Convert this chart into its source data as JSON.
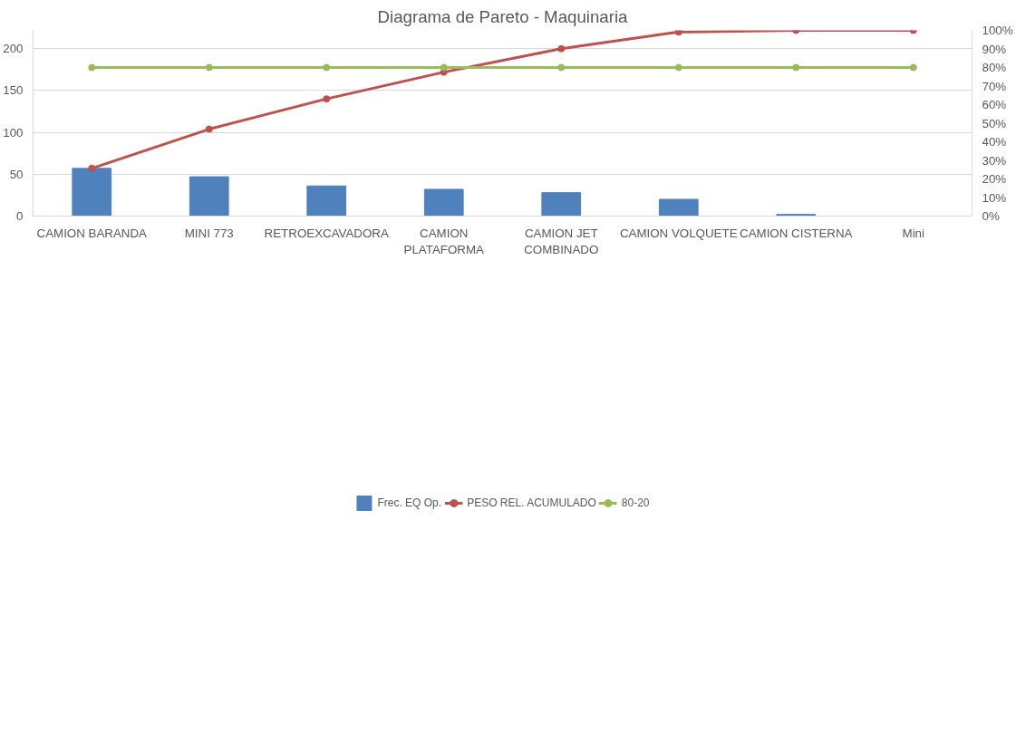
{
  "chart_data": {
    "type": "bar",
    "title": "Diagrama de Pareto - Maquinaria",
    "categories": [
      "CAMION BARANDA",
      "MINI 773",
      "RETROEXCAVADORA",
      "CAMION PLATAFORMA",
      "CAMION JET COMBINADO",
      "CAMION VOLQUETE",
      "CAMION CISTERNA",
      "Mini"
    ],
    "series": [
      {
        "name": "Frec. EQ Op.",
        "color": "#4f81bd",
        "values": [
          57,
          47,
          36,
          32,
          28,
          20,
          2,
          0
        ]
      },
      {
        "name": "PESO REL. ACUMULADO",
        "type": "line",
        "axis": "y2",
        "color": "#c0504d",
        "marker": "circle",
        "values": [
          25.7,
          46.8,
          63.1,
          77.5,
          90.1,
          99.1,
          100,
          100
        ]
      },
      {
        "name": "80-20",
        "type": "line",
        "axis": "y2",
        "color": "#9bbb59",
        "marker": "circle",
        "values": [
          80,
          80,
          80,
          80,
          80,
          80,
          80,
          80
        ]
      }
    ],
    "ylim": [
      0,
      222
    ],
    "yticks": [
      0,
      50,
      100,
      150,
      200
    ],
    "y2lim": [
      0,
      100
    ],
    "y2ticks": [
      {
        "value": 0,
        "label": "0%"
      },
      {
        "value": 10,
        "label": "10%"
      },
      {
        "value": 20,
        "label": "20%"
      },
      {
        "value": 30,
        "label": "30%"
      },
      {
        "value": 40,
        "label": "40%"
      },
      {
        "value": 50,
        "label": "50%"
      },
      {
        "value": 60,
        "label": "60%"
      },
      {
        "value": 70,
        "label": "70%"
      },
      {
        "value": 80,
        "label": "80%"
      },
      {
        "value": 90,
        "label": "90%"
      },
      {
        "value": 100,
        "label": "100%"
      }
    ],
    "grid": "y",
    "legend": "bottom"
  }
}
